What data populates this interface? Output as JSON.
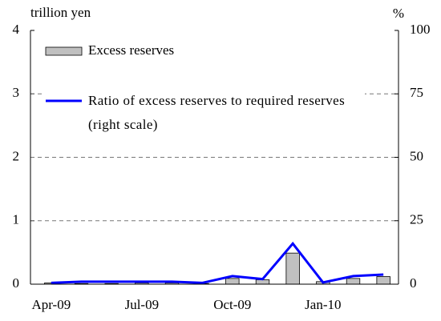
{
  "chart_data": {
    "type": "bar",
    "y_label": "trillion yen",
    "y2_label": "%",
    "categories": [
      "Apr-09",
      null,
      null,
      "Jul-09",
      null,
      null,
      "Oct-09",
      null,
      null,
      "Jan-10",
      null,
      null
    ],
    "series": [
      {
        "name": "Excess reserves",
        "type": "bar",
        "color": "#c0c0c0",
        "values": [
          0.02,
          0.01,
          0.01,
          0.02,
          0.02,
          0.01,
          0.09,
          0.07,
          0.49,
          0.04,
          0.09,
          0.12
        ]
      },
      {
        "name": "Ratio of excess reserves to required reserves (right scale)",
        "type": "line",
        "axis": "y2",
        "color": "#0000ff",
        "values": [
          0.5,
          1,
          1,
          1,
          1,
          0.5,
          3.2,
          2,
          16,
          0.7,
          3.2,
          3.8
        ]
      }
    ],
    "ylim": [
      0,
      4
    ],
    "yticks": [
      0,
      1,
      2,
      3,
      4
    ],
    "y2lim": [
      0,
      100
    ],
    "y2ticks": [
      0,
      25,
      50,
      75,
      100
    ],
    "grid": true
  }
}
